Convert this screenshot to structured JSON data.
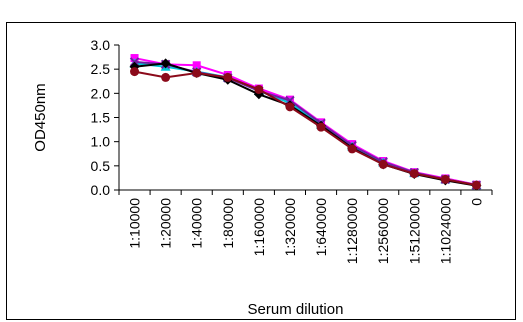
{
  "chart_data": {
    "type": "line",
    "xlabel": "Serum dilution",
    "ylabel": "OD450nm",
    "ylim": [
      0,
      3.0
    ],
    "y_ticks": [
      "3.0",
      "2.5",
      "2.0",
      "1.5",
      "1.0",
      "0.5",
      "0.0"
    ],
    "categories": [
      "1:10000",
      "1:20000",
      "1:40000",
      "1:80000",
      "1:160000",
      "1:320000",
      "1:640000",
      "1:1280000",
      "1:2560000",
      "1:5120000",
      "1:1024000",
      "0"
    ],
    "grid": false,
    "legend": "none",
    "series": [
      {
        "color": "#ff00ff",
        "marker": "square",
        "values": [
          2.73,
          2.6,
          2.58,
          2.38,
          2.1,
          1.87,
          1.4,
          0.95,
          0.6,
          0.37,
          0.24,
          0.11
        ]
      },
      {
        "color": "#00c8d8",
        "marker": "triangle",
        "values": [
          2.62,
          2.55,
          2.45,
          2.33,
          2.05,
          1.8,
          1.35,
          0.9,
          0.57,
          0.35,
          0.22,
          0.1
        ]
      },
      {
        "color": "#7020a0",
        "marker": "x",
        "values": [
          2.65,
          2.6,
          2.44,
          2.32,
          2.05,
          1.85,
          1.38,
          0.92,
          0.58,
          0.36,
          0.22,
          0.1
        ]
      },
      {
        "color": "#000000",
        "marker": "diamond",
        "values": [
          2.55,
          2.62,
          2.42,
          2.28,
          1.98,
          1.75,
          1.33,
          0.87,
          0.53,
          0.33,
          0.2,
          0.09
        ]
      },
      {
        "color": "#8b0a1a",
        "marker": "circle",
        "values": [
          2.45,
          2.33,
          2.42,
          2.33,
          2.08,
          1.72,
          1.3,
          0.85,
          0.53,
          0.34,
          0.22,
          0.1
        ]
      }
    ]
  }
}
